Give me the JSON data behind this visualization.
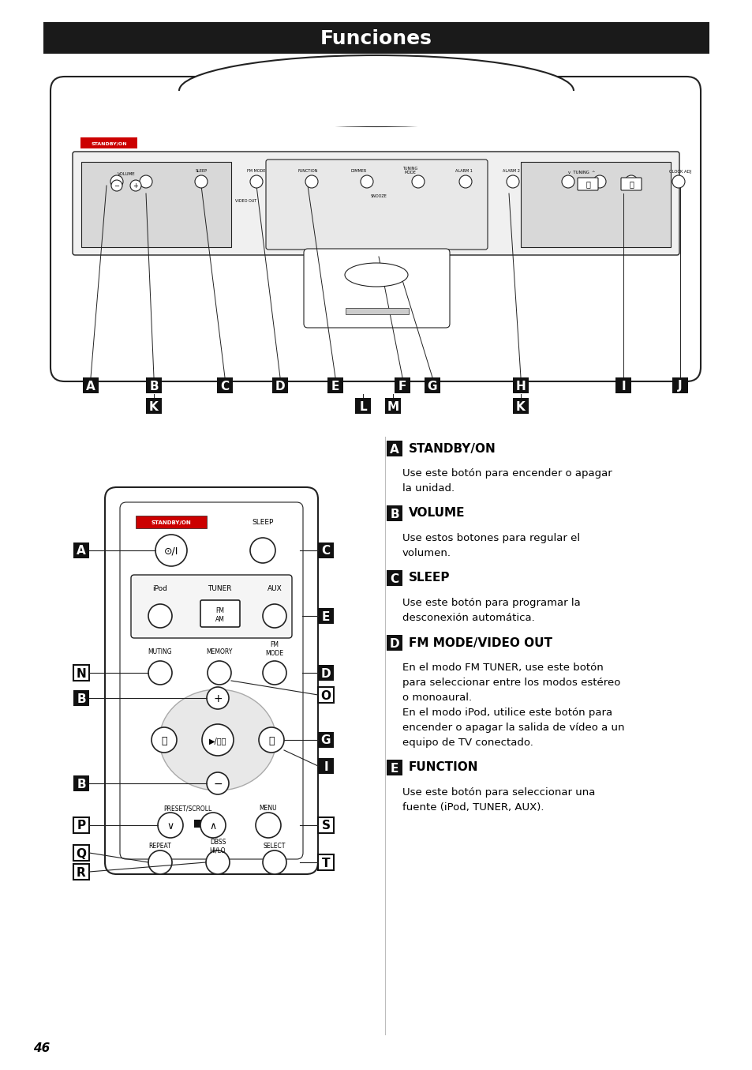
{
  "title": "Funciones",
  "title_bg": "#1a1a1a",
  "title_color": "#ffffff",
  "page_number": "46",
  "bg_color": "#ffffff",
  "line_color": "#222222",
  "sections": [
    {
      "label": "A",
      "label_style": "black",
      "heading": "STANDBY/ON",
      "text": "Use este botón para encender o apagar\nla unidad."
    },
    {
      "label": "B",
      "label_style": "black",
      "heading": "VOLUME",
      "text": "Use estos botones para regular el\nvolumen."
    },
    {
      "label": "C",
      "label_style": "black",
      "heading": "SLEEP",
      "text": "Use este botón para programar la\ndesconexión automática."
    },
    {
      "label": "D",
      "label_style": "black",
      "heading": "FM MODE/VIDEO OUT",
      "text": "En el modo FM TUNER, use este botón\npara seleccionar entre los modos estéreo\no monoaural.\nEn el modo iPod, utilice este botón para\nencender o apagar la salida de vídeo a un\nequipo de TV conectado."
    },
    {
      "label": "E",
      "label_style": "black",
      "heading": "FUNCTION",
      "text": "Use este botón para seleccionar una\nfuente (iPod, TUNER, AUX)."
    }
  ]
}
